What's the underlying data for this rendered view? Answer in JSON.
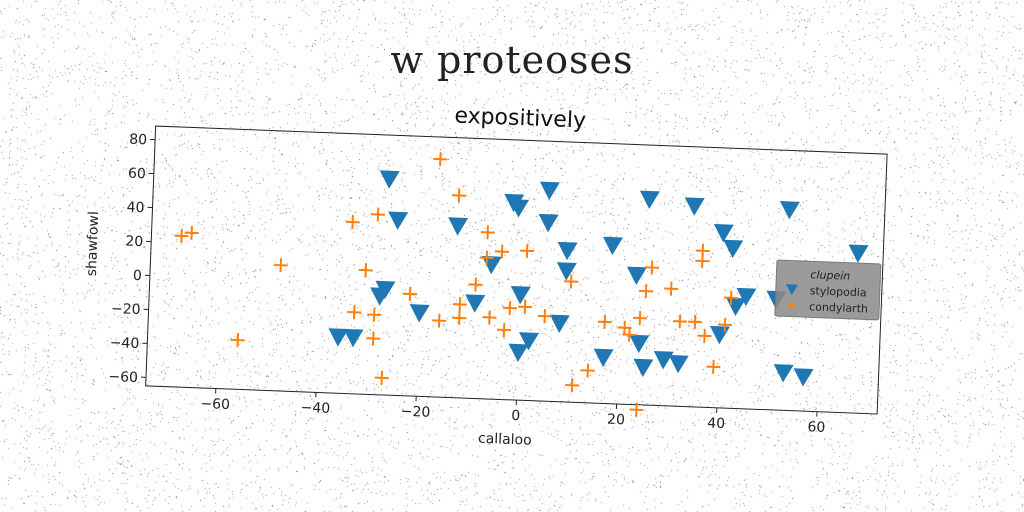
{
  "figure_title": "w proteoses",
  "chart_data": {
    "type": "scatter",
    "title": "expositively",
    "xlabel": "callaloo",
    "ylabel": "shawfowl",
    "xlim": [
      -74,
      72
    ],
    "ylim": [
      -65,
      88
    ],
    "xticks": [
      -60,
      -40,
      -20,
      0,
      20,
      40,
      60
    ],
    "yticks": [
      -60,
      -40,
      -20,
      0,
      20,
      40,
      60,
      80
    ],
    "grid": false,
    "legend_position": "right",
    "series": [
      {
        "name": "clupein",
        "marker": "none",
        "color": "#1f77b4",
        "points": []
      },
      {
        "name": "stylopodia",
        "marker": "triangle-down",
        "color": "#1f77b4",
        "points": [
          [
            -27,
            62
          ],
          [
            -25,
            38
          ],
          [
            -13,
            36
          ],
          [
            -2,
            51
          ],
          [
            -1,
            48
          ],
          [
            5,
            59
          ],
          [
            5,
            40
          ],
          [
            9,
            24
          ],
          [
            9,
            12
          ],
          [
            18,
            28
          ],
          [
            23,
            11
          ],
          [
            25,
            56
          ],
          [
            34,
            53
          ],
          [
            40,
            38
          ],
          [
            42,
            29
          ],
          [
            45,
            1
          ],
          [
            43,
            -5
          ],
          [
            53,
            53
          ],
          [
            51,
            0
          ],
          [
            67,
            29
          ],
          [
            -6,
            14
          ],
          [
            -27,
            -3
          ],
          [
            -28,
            -7
          ],
          [
            -20,
            -16
          ],
          [
            -9,
            -9
          ],
          [
            0,
            -3
          ],
          [
            2,
            -30
          ],
          [
            -36,
            -32
          ],
          [
            -33,
            -32
          ],
          [
            8,
            -19
          ],
          [
            0,
            -37
          ],
          [
            17,
            -38
          ],
          [
            24,
            -29
          ],
          [
            25,
            -43
          ],
          [
            29,
            -38
          ],
          [
            32,
            -40
          ],
          [
            40,
            -22
          ],
          [
            53,
            -43
          ],
          [
            57,
            -45
          ]
        ]
      },
      {
        "name": "condylarth",
        "marker": "plus",
        "color": "#ff7f0e",
        "points": [
          [
            -68,
            24
          ],
          [
            -66,
            26
          ],
          [
            -48,
            9
          ],
          [
            -56,
            -36
          ],
          [
            -34,
            36
          ],
          [
            -31,
            8
          ],
          [
            -29,
            41
          ],
          [
            -33,
            -17
          ],
          [
            -29,
            -18
          ],
          [
            -29,
            -32
          ],
          [
            -27,
            -55
          ],
          [
            -22,
            -5
          ],
          [
            -16,
            -20
          ],
          [
            -13,
            54
          ],
          [
            -12,
            -18
          ],
          [
            -12,
            -10
          ],
          [
            -9,
            2
          ],
          [
            -7,
            33
          ],
          [
            -7,
            18
          ],
          [
            -6,
            -17
          ],
          [
            -4,
            22
          ],
          [
            -3,
            -24
          ],
          [
            -2,
            -11
          ],
          [
            1,
            23
          ],
          [
            1,
            -10
          ],
          [
            5,
            -15
          ],
          [
            10,
            6
          ],
          [
            11,
            -55
          ],
          [
            14,
            -46
          ],
          [
            17,
            -17
          ],
          [
            21,
            -20
          ],
          [
            22,
            -24
          ],
          [
            24,
            -14
          ],
          [
            25,
            2
          ],
          [
            26,
            16
          ],
          [
            30,
            4
          ],
          [
            32,
            -15
          ],
          [
            35,
            -15
          ],
          [
            36,
            27
          ],
          [
            36,
            21
          ],
          [
            37,
            -23
          ],
          [
            39,
            -41
          ],
          [
            41,
            -16
          ],
          [
            42,
            0
          ],
          [
            24,
            -68
          ],
          [
            -17,
            75
          ]
        ]
      }
    ]
  }
}
